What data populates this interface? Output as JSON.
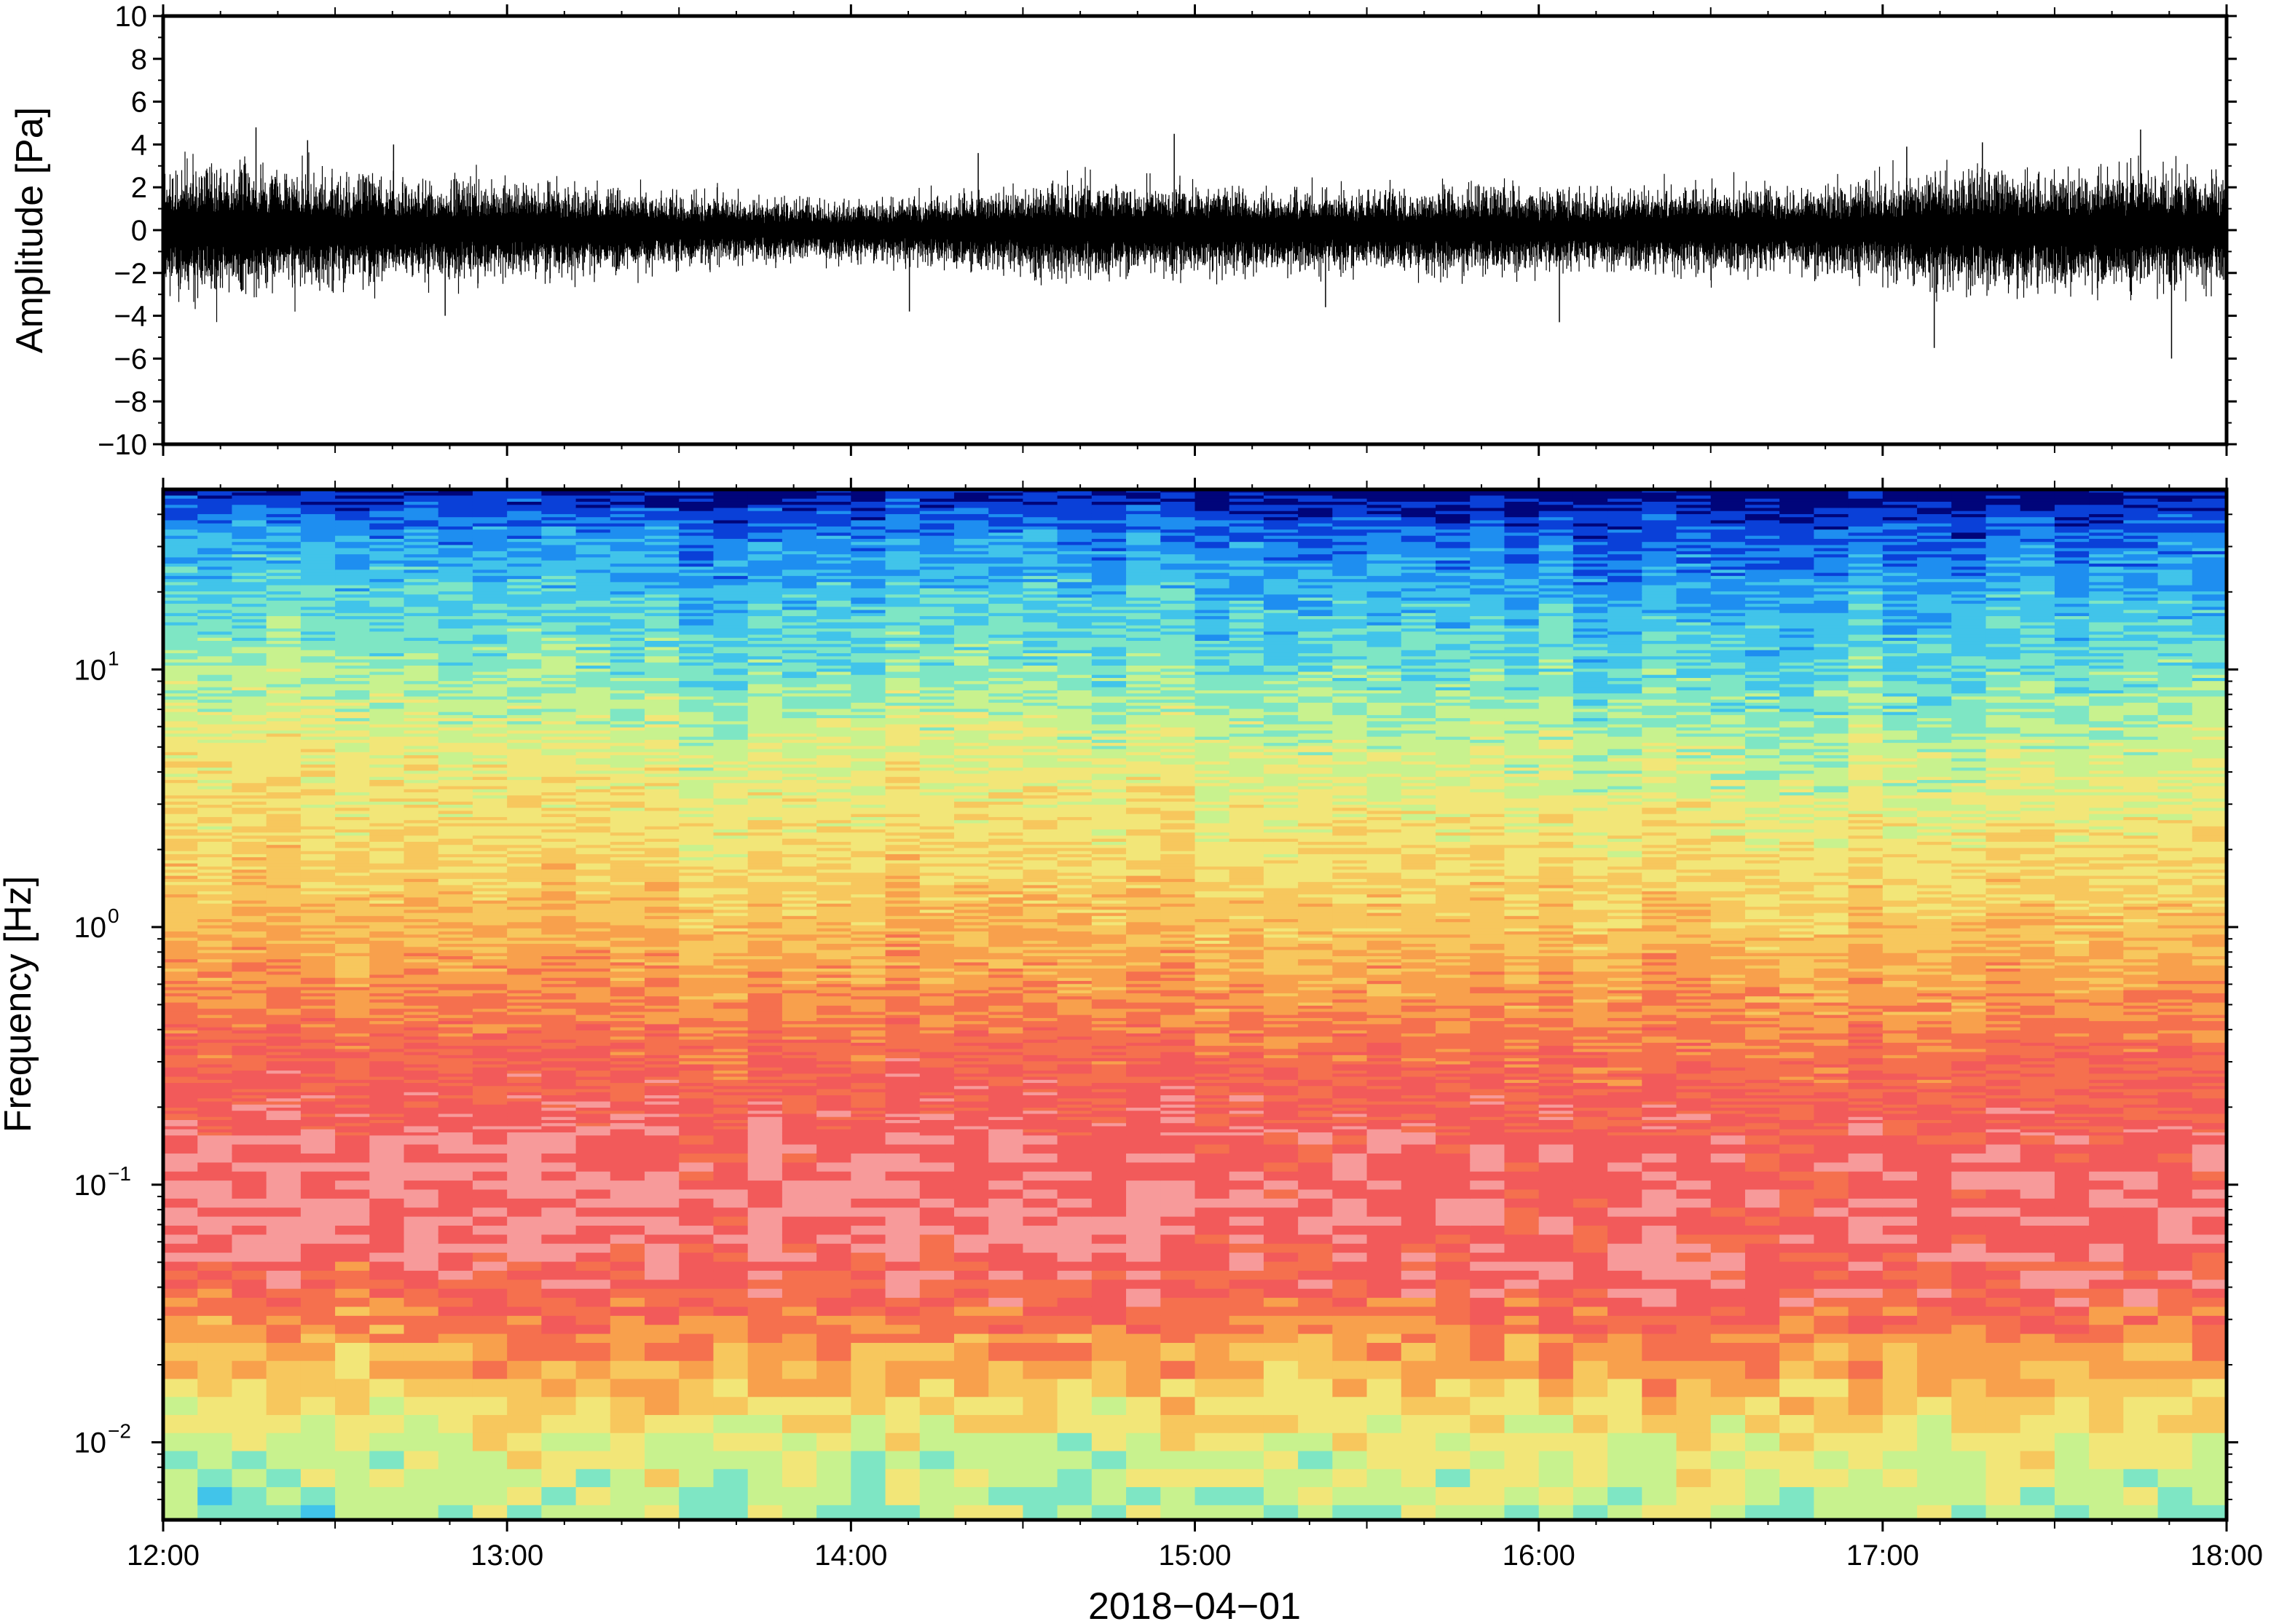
{
  "chart_data": [
    {
      "type": "line",
      "name": "waveform",
      "ylabel": "Amplitude [Pa]",
      "xlabel": "",
      "ylim": [
        -10,
        10
      ],
      "yticks": [
        10,
        8,
        6,
        4,
        2,
        0,
        -2,
        -4,
        -6,
        -8,
        -10
      ],
      "ytick_labels": [
        "10",
        "8",
        "6",
        "4",
        "2",
        "0",
        "−2",
        "−4",
        "−6",
        "−8",
        "−10"
      ],
      "xlim": [
        "12:00",
        "18:00"
      ],
      "grid": false,
      "envelope": {
        "hours": [
          12.0,
          12.25,
          12.5,
          12.75,
          13.0,
          13.25,
          13.5,
          13.75,
          14.0,
          14.25,
          14.5,
          14.75,
          15.0,
          15.25,
          15.5,
          15.75,
          16.0,
          16.25,
          16.5,
          16.75,
          17.0,
          17.25,
          17.5,
          17.75,
          18.0
        ],
        "typical_abs_amplitude": [
          1.8,
          2.0,
          1.6,
          1.5,
          1.4,
          1.3,
          1.1,
          0.9,
          0.9,
          1.0,
          1.3,
          1.4,
          1.3,
          1.2,
          1.1,
          1.3,
          1.2,
          1.2,
          1.3,
          1.2,
          1.5,
          1.8,
          1.7,
          1.8,
          1.7
        ]
      },
      "peaks": [
        {
          "hour": 12.27,
          "value": 4.8
        },
        {
          "hour": 12.42,
          "value": 4.2
        },
        {
          "hour": 12.67,
          "value": 4.0
        },
        {
          "hour": 12.82,
          "value": -4.0
        },
        {
          "hour": 14.17,
          "value": -3.8
        },
        {
          "hour": 14.37,
          "value": 3.6
        },
        {
          "hour": 14.94,
          "value": 4.5
        },
        {
          "hour": 15.38,
          "value": -3.6
        },
        {
          "hour": 16.06,
          "value": -4.3
        },
        {
          "hour": 17.07,
          "value": 3.9
        },
        {
          "hour": 17.15,
          "value": -5.5
        },
        {
          "hour": 17.29,
          "value": 4.1
        },
        {
          "hour": 17.75,
          "value": 4.7
        },
        {
          "hour": 17.84,
          "value": -6.0
        }
      ]
    },
    {
      "type": "heatmap",
      "name": "spectrogram",
      "ylabel": "Frequency [Hz]",
      "xlabel": "2018−04−01",
      "yscale": "log",
      "ylim": [
        0.005,
        50
      ],
      "yticks": [
        10,
        1,
        0.1,
        0.01
      ],
      "ytick_labels": [
        {
          "base": "10",
          "exp": "1"
        },
        {
          "base": "10",
          "exp": "0"
        },
        {
          "base": "10",
          "exp": "−1"
        },
        {
          "base": "10",
          "exp": "−2"
        }
      ],
      "xlim": [
        "12:00",
        "18:00"
      ],
      "xticks": [
        "12:00",
        "13:00",
        "14:00",
        "15:00",
        "16:00",
        "17:00",
        "18:00"
      ],
      "grid": false,
      "colormap": [
        "#00057a",
        "#0a40d8",
        "#1e8ef0",
        "#41c4ea",
        "#7ee6c4",
        "#c8f28e",
        "#f2e678",
        "#f7c75d",
        "#f8a04c",
        "#f5704e",
        "#f25a5a",
        "#f79a9a"
      ],
      "time_columns": 60,
      "profile_log10f": [
        1.7,
        1.55,
        1.3,
        1.0,
        0.7,
        0.3,
        0.0,
        -0.3,
        -0.5,
        -0.75,
        -1.0,
        -1.2,
        -1.4,
        -1.6,
        -1.8,
        -2.0,
        -2.3
      ],
      "profile_level": [
        0.0,
        1.6,
        2.9,
        4.0,
        5.3,
        6.4,
        7.3,
        8.4,
        9.3,
        10.0,
        10.4,
        10.5,
        9.9,
        8.5,
        7.0,
        5.6,
        4.8
      ],
      "column_offset_by_hour": {
        "hours": [
          12.0,
          12.5,
          13.0,
          13.5,
          14.0,
          14.5,
          15.0,
          15.5,
          16.0,
          16.5,
          17.0,
          17.5,
          18.0
        ],
        "offset": [
          0.8,
          0.6,
          0.2,
          0.0,
          0.1,
          0.2,
          0.0,
          0.0,
          -0.2,
          -0.6,
          -0.3,
          -0.2,
          0.0
        ]
      }
    }
  ]
}
